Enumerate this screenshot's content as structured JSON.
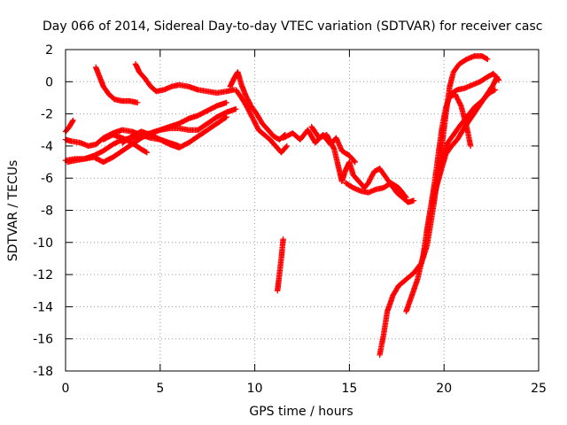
{
  "chart_data": {
    "type": "scatter",
    "title": "Day 066 of 2014, Sidereal Day-to-day VTEC variation (SDTVAR) for receiver casc",
    "xlabel": "GPS time / hours",
    "ylabel": "SDTVAR / TECUs",
    "xlim": [
      0,
      25
    ],
    "ylim": [
      -18,
      2
    ],
    "xticks": [
      0,
      5,
      10,
      15,
      20,
      25
    ],
    "yticks": [
      2,
      0,
      -2,
      -4,
      -6,
      -8,
      -10,
      -12,
      -14,
      -16,
      -18
    ],
    "grid": true,
    "grid_style": "dotted",
    "marker": "+",
    "color": "#ff0000",
    "series": [
      {
        "name": "s1",
        "points": [
          [
            0,
            -3.1
          ],
          [
            0.2,
            -2.8
          ],
          [
            0.4,
            -2.4
          ]
        ]
      },
      {
        "name": "s2",
        "points": [
          [
            0,
            -3.6
          ],
          [
            0.3,
            -3.7
          ],
          [
            0.8,
            -3.8
          ],
          [
            1.2,
            -4.0
          ],
          [
            1.6,
            -3.9
          ],
          [
            2.0,
            -3.5
          ],
          [
            2.5,
            -3.2
          ],
          [
            3.0,
            -3.0
          ],
          [
            3.5,
            -3.1
          ],
          [
            4.0,
            -3.3
          ],
          [
            4.5,
            -3.5
          ],
          [
            5.0,
            -3.6
          ],
          [
            5.5,
            -3.8
          ],
          [
            6.0,
            -4.0
          ]
        ]
      },
      {
        "name": "s3",
        "points": [
          [
            0,
            -4.9
          ],
          [
            0.5,
            -4.8
          ],
          [
            1.0,
            -4.8
          ],
          [
            1.5,
            -4.6
          ],
          [
            2.0,
            -4.3
          ],
          [
            2.5,
            -3.9
          ],
          [
            3.0,
            -3.6
          ],
          [
            3.5,
            -3.5
          ],
          [
            4.0,
            -3.3
          ],
          [
            4.5,
            -3.2
          ],
          [
            5.0,
            -3.0
          ],
          [
            5.5,
            -2.8
          ],
          [
            6.0,
            -2.6
          ],
          [
            6.5,
            -2.3
          ],
          [
            7.0,
            -2.1
          ],
          [
            7.5,
            -1.8
          ],
          [
            8.0,
            -1.5
          ],
          [
            8.5,
            -1.3
          ]
        ]
      },
      {
        "name": "s4",
        "points": [
          [
            0.1,
            -5.0
          ],
          [
            0.5,
            -4.9
          ],
          [
            1.0,
            -4.8
          ],
          [
            1.5,
            -4.7
          ],
          [
            2.0,
            -5.0
          ],
          [
            2.5,
            -4.7
          ],
          [
            3.0,
            -4.3
          ],
          [
            3.5,
            -3.9
          ],
          [
            4.0,
            -3.5
          ],
          [
            4.5,
            -3.2
          ],
          [
            5.0,
            -3.0
          ],
          [
            5.5,
            -2.9
          ],
          [
            6.0,
            -2.9
          ],
          [
            6.5,
            -3.0
          ],
          [
            7.0,
            -3.0
          ],
          [
            7.5,
            -2.6
          ],
          [
            8.0,
            -2.2
          ],
          [
            8.5,
            -1.9
          ],
          [
            9.0,
            -1.7
          ]
        ]
      },
      {
        "name": "s5",
        "points": [
          [
            1.6,
            0.9
          ],
          [
            1.8,
            0.3
          ],
          [
            2.0,
            -0.3
          ],
          [
            2.3,
            -0.8
          ],
          [
            2.6,
            -1.1
          ],
          [
            3.0,
            -1.2
          ],
          [
            3.4,
            -1.2
          ],
          [
            3.8,
            -1.3
          ]
        ]
      },
      {
        "name": "s6",
        "points": [
          [
            3.7,
            1.1
          ],
          [
            3.9,
            0.6
          ],
          [
            4.2,
            0.2
          ],
          [
            4.5,
            -0.3
          ],
          [
            4.8,
            -0.6
          ],
          [
            5.2,
            -0.5
          ],
          [
            5.6,
            -0.3
          ],
          [
            6.0,
            -0.2
          ],
          [
            6.5,
            -0.3
          ],
          [
            7.0,
            -0.5
          ],
          [
            7.5,
            -0.6
          ],
          [
            8.0,
            -0.7
          ],
          [
            8.5,
            -0.6
          ],
          [
            8.9,
            -0.5
          ]
        ]
      },
      {
        "name": "s7",
        "points": [
          [
            3.0,
            -3.8
          ],
          [
            3.5,
            -3.4
          ],
          [
            4.0,
            -3.1
          ],
          [
            4.5,
            -3.3
          ],
          [
            5.0,
            -3.6
          ],
          [
            5.5,
            -3.9
          ],
          [
            6.0,
            -4.1
          ],
          [
            6.5,
            -3.8
          ],
          [
            7.0,
            -3.4
          ],
          [
            7.5,
            -3.0
          ],
          [
            8.0,
            -2.6
          ],
          [
            8.5,
            -2.2
          ]
        ]
      },
      {
        "name": "s8",
        "points": [
          [
            2.0,
            -3.6
          ],
          [
            2.5,
            -3.3
          ],
          [
            3.0,
            -3.5
          ],
          [
            3.5,
            -3.8
          ],
          [
            4.0,
            -4.2
          ],
          [
            4.3,
            -4.4
          ]
        ]
      },
      {
        "name": "s9",
        "points": [
          [
            8.7,
            -0.3
          ],
          [
            8.9,
            0.2
          ],
          [
            9.1,
            0.6
          ],
          [
            9.3,
            -0.2
          ],
          [
            9.5,
            -0.8
          ],
          [
            9.8,
            -1.5
          ],
          [
            10.1,
            -2.0
          ],
          [
            10.4,
            -2.6
          ],
          [
            10.7,
            -3.0
          ],
          [
            11.0,
            -3.4
          ],
          [
            11.3,
            -3.6
          ],
          [
            11.6,
            -3.3
          ]
        ]
      },
      {
        "name": "s10",
        "points": [
          [
            9.0,
            -0.5
          ],
          [
            9.3,
            -1.0
          ],
          [
            9.6,
            -1.6
          ],
          [
            9.9,
            -2.3
          ],
          [
            10.2,
            -3.0
          ],
          [
            10.5,
            -3.3
          ],
          [
            10.8,
            -3.6
          ],
          [
            11.1,
            -4.0
          ],
          [
            11.4,
            -4.4
          ],
          [
            11.7,
            -4.0
          ]
        ]
      },
      {
        "name": "s11",
        "points": [
          [
            11.2,
            -13.0
          ],
          [
            11.3,
            -12.0
          ],
          [
            11.4,
            -11.0
          ],
          [
            11.5,
            -9.8
          ]
        ]
      },
      {
        "name": "s12",
        "points": [
          [
            11.5,
            -3.5
          ],
          [
            12.0,
            -3.2
          ],
          [
            12.4,
            -3.6
          ],
          [
            12.8,
            -3.0
          ],
          [
            13.2,
            -3.8
          ],
          [
            13.6,
            -3.3
          ],
          [
            14.0,
            -3.9
          ],
          [
            14.3,
            -3.5
          ],
          [
            14.6,
            -4.3
          ],
          [
            15.0,
            -4.6
          ],
          [
            15.3,
            -5.0
          ]
        ]
      },
      {
        "name": "s13",
        "points": [
          [
            13.0,
            -2.8
          ],
          [
            13.4,
            -3.5
          ],
          [
            13.8,
            -3.3
          ],
          [
            14.2,
            -4.2
          ],
          [
            14.4,
            -5.2
          ],
          [
            14.6,
            -6.2
          ],
          [
            14.8,
            -5.5
          ],
          [
            15.0,
            -5.0
          ],
          [
            15.2,
            -5.8
          ],
          [
            15.5,
            -6.2
          ],
          [
            15.8,
            -6.6
          ],
          [
            16.0,
            -6.3
          ],
          [
            16.3,
            -5.6
          ],
          [
            16.6,
            -5.4
          ],
          [
            16.9,
            -5.9
          ],
          [
            17.2,
            -6.4
          ],
          [
            17.5,
            -6.9
          ],
          [
            17.8,
            -7.2
          ],
          [
            18.1,
            -7.5
          ],
          [
            18.4,
            -7.4
          ]
        ]
      },
      {
        "name": "s14",
        "points": [
          [
            14.8,
            -6.3
          ],
          [
            15.2,
            -6.6
          ],
          [
            15.6,
            -6.8
          ],
          [
            16.0,
            -6.9
          ],
          [
            16.4,
            -6.7
          ],
          [
            16.8,
            -6.6
          ],
          [
            17.2,
            -6.3
          ],
          [
            17.6,
            -6.6
          ],
          [
            18.0,
            -7.2
          ]
        ]
      },
      {
        "name": "s15",
        "points": [
          [
            16.6,
            -17.0
          ],
          [
            16.8,
            -15.8
          ],
          [
            17.0,
            -14.3
          ],
          [
            17.3,
            -13.3
          ],
          [
            17.6,
            -12.7
          ],
          [
            18.0,
            -12.3
          ],
          [
            18.4,
            -11.9
          ],
          [
            18.8,
            -11.3
          ],
          [
            19.1,
            -10.2
          ],
          [
            19.3,
            -8.8
          ],
          [
            19.5,
            -7.3
          ],
          [
            19.7,
            -5.6
          ],
          [
            19.9,
            -3.9
          ],
          [
            20.1,
            -2.0
          ],
          [
            20.3,
            -0.3
          ],
          [
            20.5,
            0.6
          ],
          [
            20.8,
            1.1
          ],
          [
            21.2,
            1.4
          ],
          [
            21.6,
            1.6
          ],
          [
            22.0,
            1.6
          ],
          [
            22.3,
            1.4
          ]
        ]
      },
      {
        "name": "s16",
        "points": [
          [
            18.0,
            -14.3
          ],
          [
            18.3,
            -13.3
          ],
          [
            18.6,
            -12.3
          ],
          [
            18.9,
            -10.8
          ],
          [
            19.1,
            -9.2
          ],
          [
            19.3,
            -7.8
          ],
          [
            19.5,
            -6.3
          ],
          [
            19.7,
            -4.5
          ],
          [
            19.9,
            -2.8
          ],
          [
            20.1,
            -1.6
          ],
          [
            20.3,
            -0.9
          ],
          [
            20.6,
            -0.8
          ],
          [
            20.9,
            -1.5
          ],
          [
            21.2,
            -2.8
          ],
          [
            21.4,
            -4.0
          ]
        ]
      },
      {
        "name": "s17",
        "points": [
          [
            19.6,
            -6.3
          ],
          [
            19.9,
            -5.0
          ],
          [
            20.2,
            -3.8
          ],
          [
            20.5,
            -3.3
          ],
          [
            20.8,
            -2.8
          ],
          [
            21.2,
            -2.2
          ],
          [
            21.6,
            -1.6
          ],
          [
            22.0,
            -1.2
          ],
          [
            22.4,
            -0.7
          ],
          [
            22.7,
            -0.5
          ]
        ]
      },
      {
        "name": "s18",
        "points": [
          [
            19.5,
            -7.0
          ],
          [
            19.8,
            -5.7
          ],
          [
            20.1,
            -4.5
          ],
          [
            20.4,
            -4.0
          ],
          [
            20.7,
            -3.6
          ],
          [
            21.0,
            -3.0
          ],
          [
            21.4,
            -2.3
          ],
          [
            21.8,
            -1.6
          ],
          [
            22.2,
            -0.9
          ],
          [
            22.6,
            -0.2
          ],
          [
            22.8,
            0.3
          ]
        ]
      },
      {
        "name": "s19",
        "points": [
          [
            20.3,
            -0.8
          ],
          [
            20.7,
            -0.5
          ],
          [
            21.1,
            -0.4
          ],
          [
            21.5,
            -0.2
          ],
          [
            21.9,
            0.0
          ],
          [
            22.3,
            0.3
          ],
          [
            22.6,
            0.5
          ],
          [
            22.9,
            0.1
          ]
        ]
      }
    ]
  }
}
